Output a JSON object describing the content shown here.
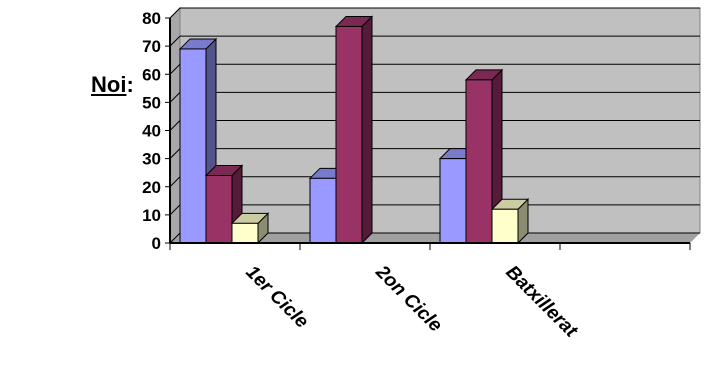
{
  "side_label": "Noi",
  "side_colon": ":",
  "chart_data": {
    "type": "bar",
    "categories": [
      "1er Cicle",
      "2on Cicle",
      "Batxillerat",
      ""
    ],
    "series_colors": [
      "#9999FF",
      "#993366",
      "#FFFFCC"
    ],
    "series": [
      {
        "values": [
          69,
          23,
          30,
          0
        ]
      },
      {
        "values": [
          24,
          77,
          58,
          0
        ]
      },
      {
        "values": [
          7,
          0,
          12,
          0
        ]
      }
    ],
    "ylim": [
      0,
      80
    ],
    "yticks": [
      0,
      10,
      20,
      30,
      40,
      50,
      60,
      70,
      80
    ],
    "plot_background": "#C0C0C0",
    "grid": true,
    "style": "3d-clustered"
  }
}
